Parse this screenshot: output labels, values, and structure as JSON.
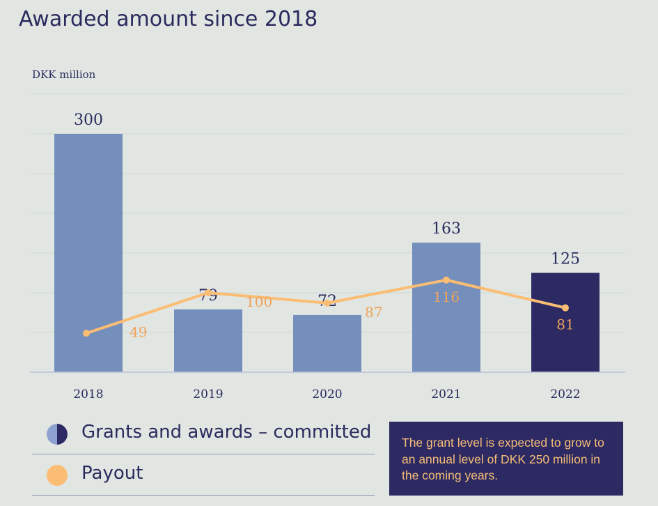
{
  "title": "Awarded amount since 2018",
  "colors": {
    "background": "#e1e6e2",
    "bar": "#758fbc",
    "bar_highlight": "#2d2a63",
    "line": "#fbbd73",
    "text": "#2b2a5e",
    "payout_label": "#f0a35a"
  },
  "chart_data": {
    "type": "bar",
    "ylabel": "DKK million",
    "ylim": [
      0,
      350
    ],
    "grid": true,
    "categories": [
      "2018",
      "2019",
      "2020",
      "2021",
      "2022"
    ],
    "series": [
      {
        "name": "Grants and awards – committed",
        "type": "bar",
        "values": [
          300,
          79,
          72,
          163,
          125
        ],
        "labels": [
          "300",
          "79",
          "72",
          "163",
          "125"
        ],
        "highlight_last": true
      },
      {
        "name": "Payout",
        "type": "line",
        "values": [
          49,
          100,
          87,
          116,
          81
        ],
        "labels": [
          "49",
          "100",
          "87",
          "116",
          "81"
        ]
      }
    ]
  },
  "legend": {
    "items": [
      {
        "label": "Grants and awards – committed",
        "icon": "half-circle-icon"
      },
      {
        "label": "Payout",
        "icon": "circle-icon"
      }
    ]
  },
  "note": {
    "text": "The grant level is expected to grow to an annual level of DKK 250 million in the coming years."
  }
}
